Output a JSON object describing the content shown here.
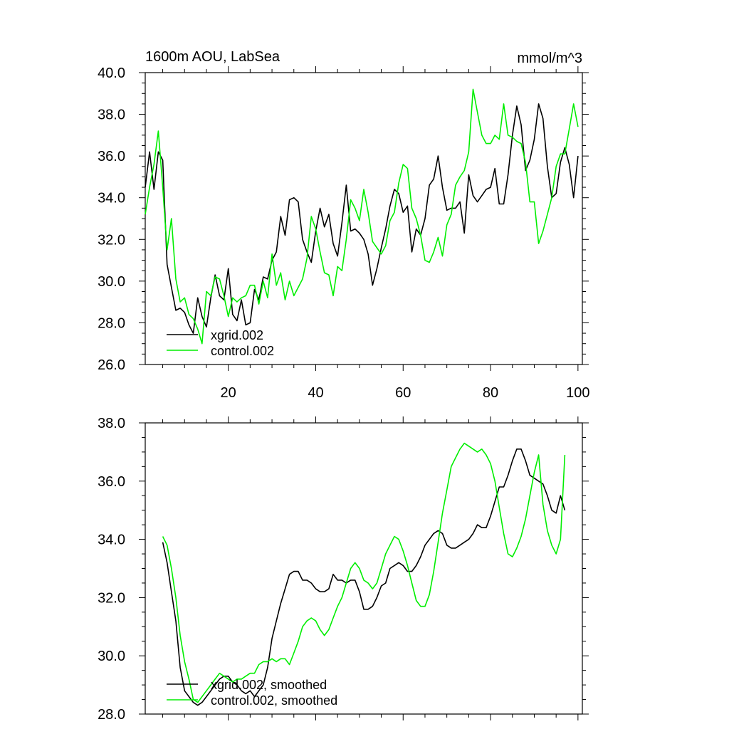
{
  "chart_data": [
    {
      "type": "line",
      "title_left": "1600m AOU, LabSea",
      "title_right": "mmol/m^3",
      "xlabel": "",
      "ylabel": "",
      "xlim": [
        1,
        101
      ],
      "ylim": [
        26,
        40
      ],
      "x_ticks": [
        20,
        40,
        60,
        80,
        100
      ],
      "x_tick_labels": [
        "20",
        "40",
        "60",
        "80",
        "100"
      ],
      "y_ticks": [
        26,
        28,
        30,
        32,
        34,
        36,
        38,
        40
      ],
      "y_tick_labels": [
        "26.0",
        "28.0",
        "30.0",
        "32.0",
        "34.0",
        "36.0",
        "38.0",
        "40.0"
      ],
      "legend_position": "bottom-left",
      "series": [
        {
          "name": "xgrid.002",
          "color": "#000000",
          "x": [
            1,
            2,
            3,
            4,
            5,
            6,
            7,
            8,
            9,
            10,
            11,
            12,
            13,
            14,
            15,
            16,
            17,
            18,
            19,
            20,
            21,
            22,
            23,
            24,
            25,
            26,
            27,
            28,
            29,
            30,
            31,
            32,
            33,
            34,
            35,
            36,
            37,
            38,
            39,
            40,
            41,
            42,
            43,
            44,
            45,
            46,
            47,
            48,
            49,
            50,
            51,
            52,
            53,
            54,
            55,
            56,
            57,
            58,
            59,
            60,
            61,
            62,
            63,
            64,
            65,
            66,
            67,
            68,
            69,
            70,
            71,
            72,
            73,
            74,
            75,
            76,
            77,
            78,
            79,
            80,
            81,
            82,
            83,
            84,
            85,
            86,
            87,
            88,
            89,
            90,
            91,
            92,
            93,
            94,
            95,
            96,
            97,
            98,
            99,
            100
          ],
          "values": [
            34.5,
            36.2,
            34.4,
            36.2,
            35.8,
            30.8,
            29.7,
            28.6,
            28.7,
            28.5,
            27.9,
            27.5,
            29.2,
            28.3,
            27.8,
            29.2,
            30.3,
            29.3,
            29.1,
            30.6,
            28.4,
            28.1,
            29.1,
            27.9,
            28.0,
            29.6,
            29.1,
            30.2,
            30.1,
            31.0,
            31.4,
            33.1,
            32.2,
            33.9,
            34.0,
            33.8,
            32.0,
            31.4,
            30.9,
            32.4,
            33.5,
            32.6,
            33.2,
            31.8,
            31.2,
            32.8,
            34.6,
            32.4,
            32.5,
            32.3,
            32.0,
            31.3,
            29.8,
            30.6,
            31.6,
            32.5,
            33.6,
            34.4,
            34.2,
            33.3,
            33.6,
            31.4,
            32.5,
            32.2,
            33.0,
            34.6,
            34.9,
            36.0,
            34.5,
            33.4,
            33.5,
            33.5,
            33.8,
            32.3,
            35.1,
            34.1,
            33.8,
            34.1,
            34.4,
            34.5,
            35.4,
            33.7,
            33.7,
            35.1,
            37.0,
            38.4,
            37.5,
            35.3,
            35.8,
            36.8,
            38.5,
            37.8,
            35.5,
            34.0,
            34.2,
            35.7,
            36.4,
            35.6,
            34.0,
            36.0
          ]
        },
        {
          "name": "control.002",
          "color": "#00ee00",
          "x": [
            1,
            2,
            3,
            4,
            5,
            6,
            7,
            8,
            9,
            10,
            11,
            12,
            13,
            14,
            15,
            16,
            17,
            18,
            19,
            20,
            21,
            22,
            23,
            24,
            25,
            26,
            27,
            28,
            29,
            30,
            31,
            32,
            33,
            34,
            35,
            36,
            37,
            38,
            39,
            40,
            41,
            42,
            43,
            44,
            45,
            46,
            47,
            48,
            49,
            50,
            51,
            52,
            53,
            54,
            55,
            56,
            57,
            58,
            59,
            60,
            61,
            62,
            63,
            64,
            65,
            66,
            67,
            68,
            69,
            70,
            71,
            72,
            73,
            74,
            75,
            76,
            77,
            78,
            79,
            80,
            81,
            82,
            83,
            84,
            85,
            86,
            87,
            88,
            89,
            90,
            91,
            92,
            93,
            94,
            95,
            96,
            97,
            98,
            99,
            100
          ],
          "values": [
            33.2,
            34.5,
            35.6,
            37.2,
            34.5,
            31.5,
            33.0,
            30.1,
            29.0,
            29.2,
            28.4,
            28.2,
            27.7,
            27.0,
            29.5,
            29.3,
            30.2,
            30.1,
            29.3,
            28.3,
            29.2,
            29.0,
            29.2,
            29.3,
            29.8,
            29.8,
            28.9,
            30.0,
            29.2,
            31.3,
            29.8,
            30.4,
            29.1,
            30.0,
            29.3,
            29.7,
            30.1,
            31.1,
            33.1,
            32.5,
            31.4,
            30.4,
            30.3,
            29.3,
            30.7,
            30.5,
            32.0,
            33.9,
            33.5,
            32.9,
            34.4,
            33.3,
            31.9,
            31.6,
            31.3,
            31.7,
            32.9,
            33.3,
            34.7,
            35.6,
            35.4,
            33.5,
            33.0,
            32.2,
            31.0,
            30.9,
            31.4,
            32.1,
            31.2,
            32.7,
            33.2,
            34.6,
            35.0,
            35.3,
            36.2,
            39.2,
            38.1,
            37.0,
            36.6,
            36.6,
            37.0,
            36.8,
            38.5,
            37.0,
            36.9,
            36.7,
            36.6,
            35.7,
            33.8,
            33.8,
            31.8,
            32.4,
            33.2,
            34.0,
            35.5,
            36.1,
            36.1,
            37.3,
            38.5,
            37.4
          ]
        }
      ]
    },
    {
      "type": "line",
      "xlabel": "",
      "ylabel": "",
      "xlim": [
        1,
        101
      ],
      "ylim": [
        28,
        38
      ],
      "x_ticks": [
        20,
        40,
        60,
        80,
        100
      ],
      "y_ticks": [
        28,
        30,
        32,
        34,
        36,
        38
      ],
      "y_tick_labels": [
        "28.0",
        "30.0",
        "32.0",
        "34.0",
        "36.0",
        "38.0"
      ],
      "legend_position": "bottom-left",
      "series": [
        {
          "name": "xgrid.002, smoothed",
          "color": "#000000",
          "x": [
            5,
            6,
            7,
            8,
            9,
            10,
            11,
            12,
            13,
            14,
            15,
            16,
            17,
            18,
            19,
            20,
            21,
            22,
            23,
            24,
            25,
            26,
            27,
            28,
            29,
            30,
            31,
            32,
            33,
            34,
            35,
            36,
            37,
            38,
            39,
            40,
            41,
            42,
            43,
            44,
            45,
            46,
            47,
            48,
            49,
            50,
            51,
            52,
            53,
            54,
            55,
            56,
            57,
            58,
            59,
            60,
            61,
            62,
            63,
            64,
            65,
            66,
            67,
            68,
            69,
            70,
            71,
            72,
            73,
            74,
            75,
            76,
            77,
            78,
            79,
            80,
            81,
            82,
            83,
            84,
            85,
            86,
            87,
            88,
            89,
            90,
            91,
            92,
            93,
            94,
            95,
            96,
            97
          ],
          "values": [
            33.9,
            33.2,
            32.2,
            31.2,
            29.6,
            28.8,
            28.6,
            28.4,
            28.3,
            28.4,
            28.6,
            28.8,
            29.0,
            29.2,
            29.3,
            29.3,
            29.1,
            29.0,
            28.8,
            28.7,
            28.8,
            28.6,
            28.8,
            29.0,
            29.6,
            30.6,
            31.2,
            31.8,
            32.3,
            32.8,
            32.9,
            32.9,
            32.6,
            32.6,
            32.5,
            32.3,
            32.2,
            32.2,
            32.3,
            32.8,
            32.6,
            32.6,
            32.5,
            32.6,
            32.6,
            32.2,
            31.6,
            31.6,
            31.7,
            32.0,
            32.4,
            32.5,
            33.0,
            33.1,
            33.2,
            33.1,
            32.9,
            32.9,
            33.1,
            33.4,
            33.8,
            34.0,
            34.2,
            34.3,
            34.2,
            33.8,
            33.7,
            33.7,
            33.8,
            33.9,
            34.0,
            34.2,
            34.5,
            34.4,
            34.4,
            34.8,
            35.3,
            35.8,
            35.8,
            36.2,
            36.7,
            37.1,
            37.1,
            36.7,
            36.2,
            36.1,
            36.0,
            35.9,
            35.5,
            35.0,
            34.9,
            35.5,
            35.0
          ]
        },
        {
          "name": "control.002, smoothed",
          "color": "#00ee00",
          "x": [
            5,
            6,
            7,
            8,
            9,
            10,
            11,
            12,
            13,
            14,
            15,
            16,
            17,
            18,
            19,
            20,
            21,
            22,
            23,
            24,
            25,
            26,
            27,
            28,
            29,
            30,
            31,
            32,
            33,
            34,
            35,
            36,
            37,
            38,
            39,
            40,
            41,
            42,
            43,
            44,
            45,
            46,
            47,
            48,
            49,
            50,
            51,
            52,
            53,
            54,
            55,
            56,
            57,
            58,
            59,
            60,
            61,
            62,
            63,
            64,
            65,
            66,
            67,
            68,
            69,
            70,
            71,
            72,
            73,
            74,
            75,
            76,
            77,
            78,
            79,
            80,
            81,
            82,
            83,
            84,
            85,
            86,
            87,
            88,
            89,
            90,
            91,
            92,
            93,
            94,
            95,
            96,
            97
          ],
          "values": [
            34.1,
            33.8,
            33.0,
            32.0,
            30.7,
            29.8,
            29.2,
            28.5,
            28.4,
            28.6,
            28.8,
            29.0,
            29.2,
            29.4,
            29.3,
            29.2,
            29.1,
            29.2,
            29.2,
            29.3,
            29.4,
            29.4,
            29.7,
            29.8,
            29.8,
            29.9,
            29.8,
            29.9,
            29.9,
            29.7,
            30.1,
            30.5,
            31.0,
            31.2,
            31.3,
            31.2,
            30.9,
            30.7,
            30.9,
            31.3,
            31.7,
            32.0,
            32.5,
            33.0,
            33.2,
            33.0,
            32.6,
            32.5,
            32.3,
            32.5,
            33.0,
            33.5,
            33.8,
            34.1,
            34.0,
            33.6,
            33.1,
            32.5,
            31.9,
            31.7,
            31.7,
            32.1,
            32.9,
            33.9,
            34.9,
            35.7,
            36.5,
            36.8,
            37.1,
            37.3,
            37.2,
            37.1,
            37.0,
            37.1,
            36.9,
            36.6,
            36.0,
            35.1,
            34.2,
            33.5,
            33.4,
            33.7,
            34.1,
            34.7,
            35.5,
            36.3,
            36.9,
            35.2,
            34.3,
            33.8,
            33.5,
            34.0,
            36.9
          ]
        }
      ]
    }
  ]
}
